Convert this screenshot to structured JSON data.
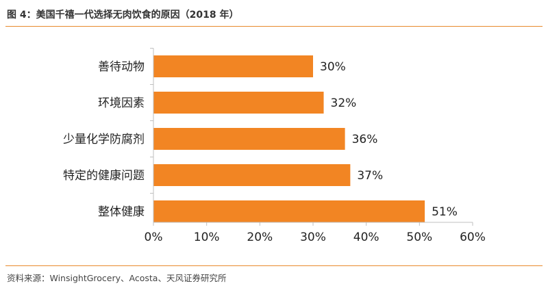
{
  "figure": {
    "title": "图 4：美国千禧一代选择无肉饮食的原因（2018 年）",
    "source": "资料来源：WinsightGrocery、Acosta、天风证券研究所"
  },
  "colors": {
    "accent": "#F28523",
    "rule": "#E8892B",
    "axis": "#BFBFBF"
  },
  "chart_data": {
    "type": "bar",
    "orientation": "horizontal",
    "categories": [
      "善待动物",
      "环境因素",
      "少量化学防腐剂",
      "特定的健康问题",
      "整体健康"
    ],
    "values": [
      30,
      32,
      36,
      37,
      51
    ],
    "value_labels": [
      "30%",
      "32%",
      "36%",
      "37%",
      "51%"
    ],
    "xlim": [
      0,
      60
    ],
    "xticks": [
      0,
      10,
      20,
      30,
      40,
      50,
      60
    ],
    "xtick_labels": [
      "0%",
      "10%",
      "20%",
      "30%",
      "40%",
      "50%",
      "60%"
    ],
    "grid": false,
    "legend": "none"
  }
}
